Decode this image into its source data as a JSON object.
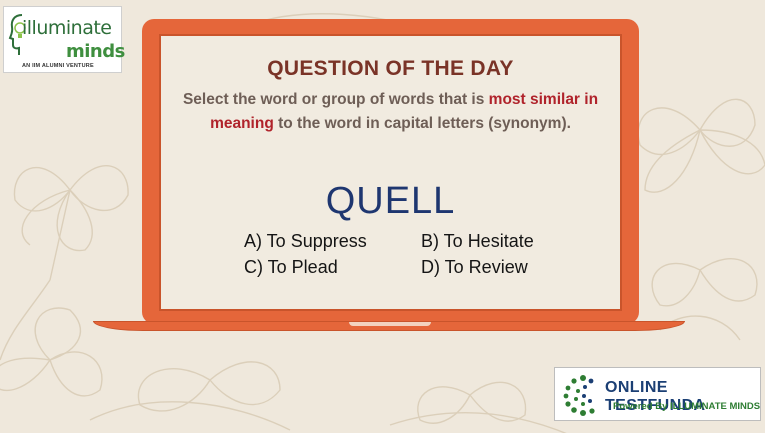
{
  "logo_top": {
    "line1": "illuminate",
    "line2": "minds",
    "tagline": "AN IIM ALUMNI VENTURE"
  },
  "card": {
    "title": "QUESTION OF THE DAY",
    "instruction": {
      "part1": "Select the word or group of words that is ",
      "highlight": "most similar in meaning",
      "part2": " to the word in capital letters (synonym)."
    },
    "word": "QUELL",
    "options": {
      "a": "A) To Suppress",
      "b": "B) To Hesitate",
      "c": "C) To Plead",
      "d": "D) To Review"
    }
  },
  "logo_bottom": {
    "brand": "ONLINE TESTFUNDA",
    "tagline": "Powered By ILLUMINATE MINDS"
  },
  "colors": {
    "background": "#efe8dc",
    "laptop": "#e5663a",
    "title": "#7a3327",
    "highlight": "#b0232b",
    "word": "#1e3670"
  }
}
